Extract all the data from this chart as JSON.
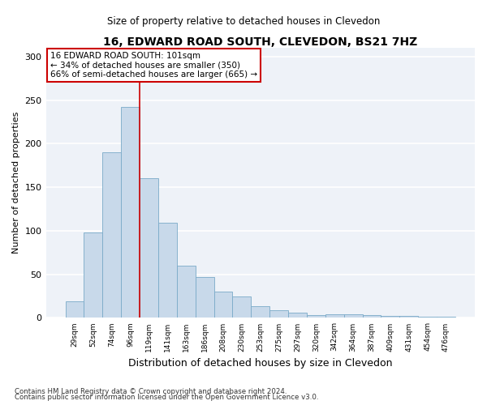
{
  "title": "16, EDWARD ROAD SOUTH, CLEVEDON, BS21 7HZ",
  "subtitle": "Size of property relative to detached houses in Clevedon",
  "xlabel": "Distribution of detached houses by size in Clevedon",
  "ylabel": "Number of detached properties",
  "categories": [
    "29sqm",
    "52sqm",
    "74sqm",
    "96sqm",
    "119sqm",
    "141sqm",
    "163sqm",
    "186sqm",
    "208sqm",
    "230sqm",
    "253sqm",
    "275sqm",
    "297sqm",
    "320sqm",
    "342sqm",
    "364sqm",
    "387sqm",
    "409sqm",
    "431sqm",
    "454sqm",
    "476sqm"
  ],
  "values": [
    19,
    98,
    190,
    242,
    160,
    109,
    60,
    47,
    30,
    25,
    13,
    9,
    6,
    3,
    4,
    4,
    3,
    2,
    2,
    1,
    1
  ],
  "bar_color": "#c8d9ea",
  "bar_edge_color": "#7aaac8",
  "background_color": "#eef2f8",
  "grid_color": "#ffffff",
  "vline_color": "#cc0000",
  "annotation_text": "16 EDWARD ROAD SOUTH: 101sqm\n← 34% of detached houses are smaller (350)\n66% of semi-detached houses are larger (665) →",
  "annotation_box_color": "#ffffff",
  "annotation_box_edge": "#cc0000",
  "ylim": [
    0,
    310
  ],
  "yticks": [
    0,
    50,
    100,
    150,
    200,
    250,
    300
  ],
  "footnote1": "Contains HM Land Registry data © Crown copyright and database right 2024.",
  "footnote2": "Contains public sector information licensed under the Open Government Licence v3.0."
}
